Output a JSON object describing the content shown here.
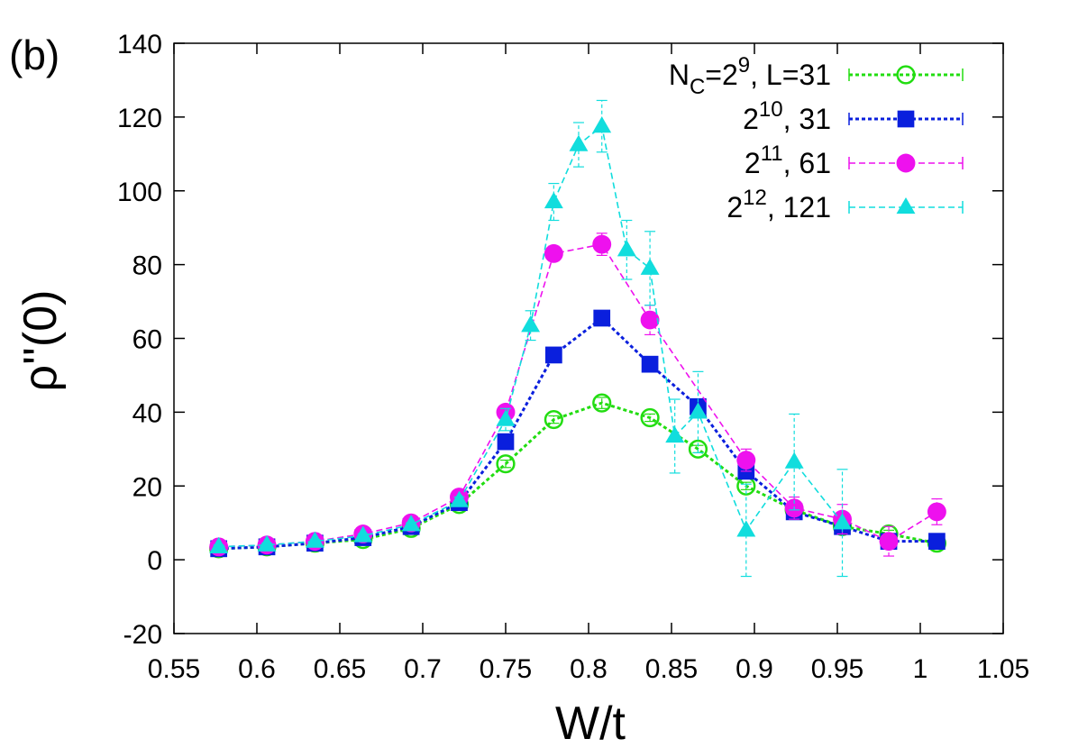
{
  "chart_data": {
    "type": "line",
    "panel_label": "(b)",
    "xlabel": "W/t",
    "ylabel": "ρ''(0)",
    "xlim": [
      0.55,
      1.05
    ],
    "ylim": [
      -20,
      140
    ],
    "xticks": [
      "0.55",
      "0.6",
      "0.65",
      "0.7",
      "0.75",
      "0.8",
      "0.85",
      "0.9",
      "0.95",
      "1",
      "1.05"
    ],
    "yticks": [
      "-20",
      "0",
      "20",
      "40",
      "60",
      "80",
      "100",
      "120",
      "140"
    ],
    "grid": false,
    "legend_position": "top-right",
    "series": [
      {
        "legend_parts": [
          "N",
          "C",
          "=2",
          "9",
          ", L=31"
        ],
        "color": "#22dd11",
        "marker": "open-circle",
        "dash": "dotted",
        "x": [
          0.577,
          0.606,
          0.635,
          0.664,
          0.693,
          0.722,
          0.75,
          0.779,
          0.808,
          0.837,
          0.866,
          0.895,
          0.924,
          0.953,
          0.981,
          1.01
        ],
        "y": [
          3,
          3.5,
          4.5,
          5.5,
          8.5,
          15,
          26,
          38,
          42.5,
          38.5,
          30,
          20,
          13.5,
          9,
          7,
          4.5
        ],
        "err": [
          0.5,
          0.5,
          0.5,
          0.5,
          0.5,
          0.5,
          1,
          1,
          1.5,
          1,
          1,
          1,
          1,
          1,
          1,
          0.5
        ]
      },
      {
        "legend_parts": [
          "2",
          "10",
          ", 31"
        ],
        "color": "#0a1fdd",
        "marker": "filled-square",
        "dash": "dotted",
        "x": [
          0.577,
          0.606,
          0.635,
          0.664,
          0.693,
          0.722,
          0.75,
          0.779,
          0.808,
          0.837,
          0.866,
          0.895,
          0.924,
          0.953,
          0.981,
          1.01
        ],
        "y": [
          3,
          3.5,
          4.5,
          6,
          9,
          15.5,
          32,
          55.5,
          65.5,
          53,
          41.5,
          24,
          13,
          9,
          5,
          5
        ],
        "err": [
          0.5,
          0.5,
          0.5,
          0.5,
          0.5,
          0.5,
          1,
          1,
          1.5,
          1,
          1.5,
          1.5,
          1,
          1,
          1,
          0.5
        ]
      },
      {
        "legend_parts": [
          "2",
          "11",
          ", 61"
        ],
        "color": "#ee11ee",
        "marker": "filled-circle",
        "dash": "dashed",
        "x": [
          0.577,
          0.606,
          0.635,
          0.664,
          0.693,
          0.722,
          0.75,
          0.779,
          0.808,
          0.837,
          0.895,
          0.924,
          0.953,
          0.981,
          1.01
        ],
        "y": [
          3.5,
          4,
          5,
          7,
          10,
          17,
          40,
          83,
          85.5,
          65,
          27,
          14,
          11,
          5,
          13
        ],
        "err": [
          0.5,
          0.5,
          0.5,
          0.5,
          0.5,
          0.5,
          1.5,
          2,
          3,
          4,
          3,
          3,
          4,
          4,
          3.5
        ]
      },
      {
        "legend_parts": [
          "2",
          "12",
          ", 121"
        ],
        "color": "#11dddd",
        "marker": "filled-triangle",
        "dash": "dashed",
        "x": [
          0.577,
          0.606,
          0.635,
          0.664,
          0.693,
          0.722,
          0.75,
          0.765,
          0.779,
          0.794,
          0.808,
          0.823,
          0.837,
          0.852,
          0.866,
          0.895,
          0.924,
          0.953
        ],
        "y": [
          3.5,
          4,
          5,
          6.5,
          9.5,
          16,
          38,
          63.5,
          97,
          112.5,
          117.5,
          84,
          79,
          33.5,
          40,
          8,
          26.5,
          10
        ],
        "err": [
          0.5,
          0.5,
          0.5,
          0.5,
          0.5,
          1,
          3,
          4,
          5,
          6,
          7,
          8,
          10,
          10,
          11,
          12.5,
          13,
          14.5
        ]
      }
    ]
  }
}
